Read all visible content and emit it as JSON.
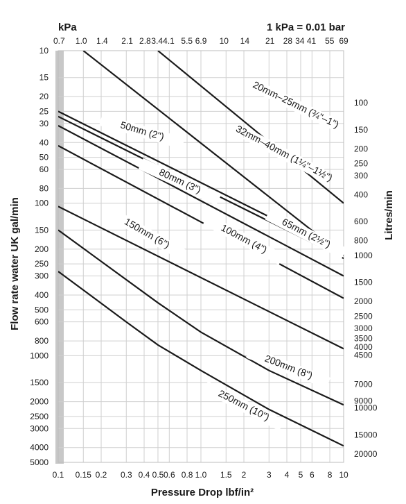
{
  "chart_data": {
    "type": "line",
    "top_axis_title": "kPa",
    "conversion_note": "1 kPa = 0.01 bar",
    "xlabel": "Pressure Drop lbf/in²",
    "ylabel": "Flow rate water UK gal/min",
    "y2label": "Litres/min",
    "x_scale": "log",
    "y_scale": "log",
    "y_inverted": true,
    "xlim": [
      0.1,
      10
    ],
    "ylim": [
      10,
      5000
    ],
    "grid": true,
    "x_ticks": [
      "0.1",
      "0.15",
      "0.2",
      "0.3",
      "0.4",
      "0.5",
      "0.6",
      "0.8",
      "1.0",
      "1.5",
      "2",
      "3",
      "4",
      "5",
      "6",
      "8",
      "10"
    ],
    "y_ticks": [
      "10",
      "15",
      "20",
      "25",
      "30",
      "40",
      "50",
      "60",
      "80",
      "100",
      "150",
      "200",
      "250",
      "300",
      "400",
      "500",
      "600",
      "800",
      "1000",
      "1500",
      "2000",
      "2500",
      "3000",
      "4000",
      "5000"
    ],
    "top_ticks": [
      "0.7",
      "1.0",
      "1.4",
      "2.1",
      "2.8",
      "3.4",
      "4.1",
      "5.5",
      "6.9",
      "10",
      "14",
      "21",
      "28",
      "34",
      "41",
      "55",
      "69"
    ],
    "right_ticks": [
      "100",
      "150",
      "200",
      "250",
      "300",
      "400",
      "600",
      "800",
      "1000",
      "1500",
      "2000",
      "2500",
      "3000",
      "3500",
      "4000",
      "4500",
      "7000",
      "9000",
      "10000",
      "15000",
      "20000"
    ],
    "series": [
      {
        "name": "20mm–25mm (¾\"–1\")",
        "x": [
          0.15,
          10
        ],
        "y": [
          10,
          220
        ]
      },
      {
        "name": "32mm–40mm (1¼\"–1½\")",
        "x": [
          0.5,
          10
        ],
        "y": [
          10,
          100
        ]
      },
      {
        "name": "50mm (2\")",
        "x": [
          0.1,
          10
        ],
        "y": [
          25,
          215
        ]
      },
      {
        "name": "65mm (2½\")",
        "x": [
          0.1,
          10
        ],
        "y": [
          27,
          230
        ]
      },
      {
        "name": "80mm (3\")",
        "x": [
          0.1,
          10
        ],
        "y": [
          31,
          300
        ]
      },
      {
        "name": "100mm (4\")",
        "x": [
          0.1,
          10
        ],
        "y": [
          42,
          420
        ]
      },
      {
        "name": "150mm (6\")",
        "x": [
          0.1,
          10
        ],
        "y": [
          105,
          900
        ]
      },
      {
        "name": "200mm (8\")",
        "x": [
          0.1,
          0.5,
          1.0,
          3,
          10
        ],
        "y": [
          150,
          450,
          700,
          1250,
          2100
        ]
      },
      {
        "name": "250mm (10\")",
        "x": [
          0.1,
          0.3,
          0.5,
          1.0,
          3,
          10
        ],
        "y": [
          280,
          600,
          850,
          1250,
          2250,
          3900
        ]
      }
    ]
  }
}
